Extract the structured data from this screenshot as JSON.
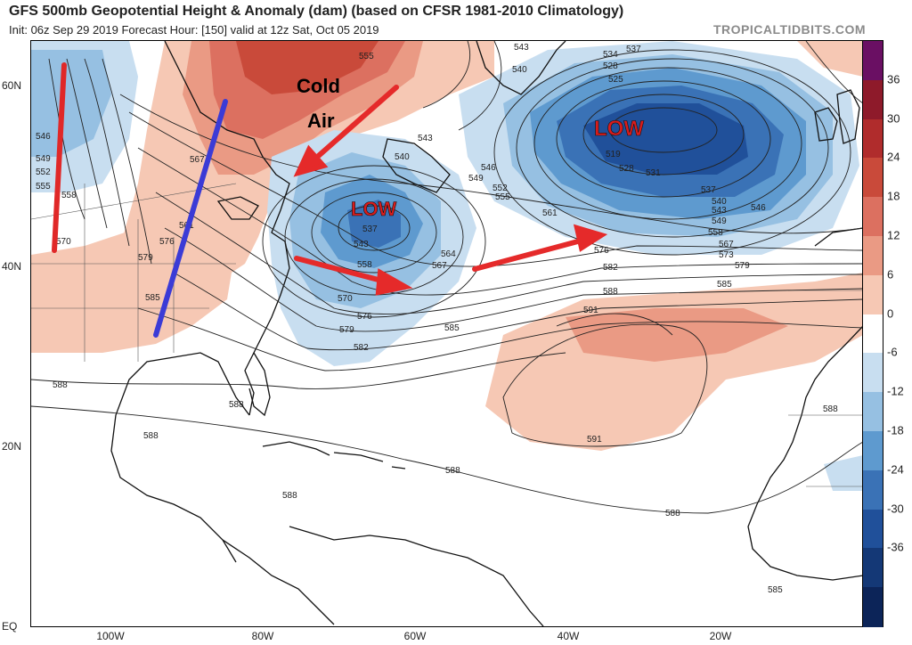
{
  "header": {
    "title": "GFS 500mb Geopotential Height & Anomaly (dam) (based on CFSR 1981-2010 Climatology)",
    "subtitle": "Init: 06z Sep 29 2019   Forecast Hour: [150]   valid at 12z Sat, Oct 05 2019",
    "brand": "TROPICALTIDBITS.COM"
  },
  "axes": {
    "lat_labels": [
      "60N",
      "40N",
      "20N",
      "EQ"
    ],
    "lon_labels": [
      "100W",
      "80W",
      "60W",
      "40W",
      "20W"
    ]
  },
  "colorbar": {
    "labels": [
      "36",
      "30",
      "24",
      "18",
      "12",
      "6",
      "0",
      "-6",
      "-12",
      "-18",
      "-24",
      "-30",
      "-36"
    ],
    "colors": [
      "#6a0f63",
      "#8e1a2a",
      "#b02c2c",
      "#c94a3a",
      "#dc7060",
      "#ea9a84",
      "#f6c8b4",
      "#ffffff",
      "#c8def0",
      "#96c0e2",
      "#5e9acf",
      "#3a72b6",
      "#20509a",
      "#143876",
      "#0c2458"
    ]
  },
  "annotations": {
    "cold_air_line1": "Cold",
    "cold_air_line2": "Air",
    "low_west": "LOW",
    "low_east": "LOW"
  },
  "contour_labels": {
    "c543a": "543",
    "c555a": "555",
    "c540a": "540",
    "c537a": "537",
    "c534": "534",
    "c528a": "528",
    "c525": "525",
    "c546a": "546",
    "c549a": "549",
    "c552": "552",
    "c555b": "555",
    "c561": "561",
    "c519": "519",
    "c528b": "528",
    "c531": "531",
    "c537b": "537",
    "c540b": "540",
    "c543b": "543",
    "c546b": "546",
    "c549b": "549",
    "c558a": "558",
    "c567a": "567",
    "c573": "573",
    "c579a": "579",
    "c585a": "585",
    "c576a": "576",
    "c582a": "582",
    "c588a": "588",
    "c591a": "591",
    "c591b": "591",
    "c543c": "543",
    "c540c": "540",
    "c537c": "537",
    "c543d": "543",
    "c558b": "558",
    "c564": "564",
    "c567b": "567",
    "c570a": "570",
    "c576b": "576",
    "c579b": "579",
    "c582b": "582",
    "c585b": "585",
    "c588b": "588",
    "c588c": "588",
    "c588d": "588",
    "c588e": "588",
    "c588f": "588",
    "c588g": "588",
    "c588h": "588",
    "c585c": "585",
    "c546w": "546",
    "c549w": "549",
    "c552w": "552",
    "c555w": "555",
    "c558w": "558",
    "c570w": "570",
    "c576w": "576",
    "c579w": "579",
    "c585w": "585",
    "c567w": "567",
    "c561w": "561"
  }
}
